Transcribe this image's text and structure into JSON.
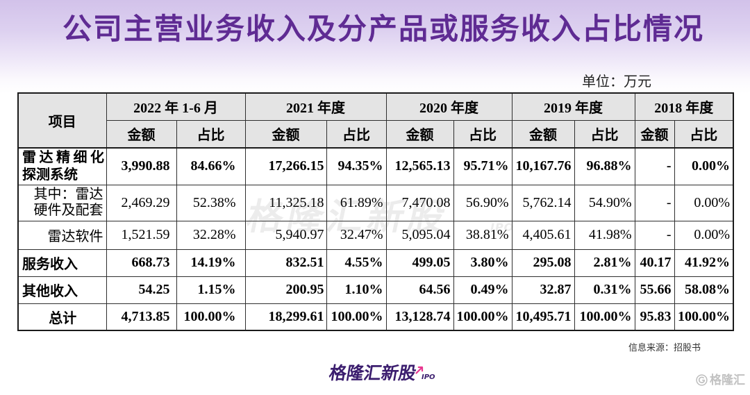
{
  "chart_data": {
    "type": "table",
    "title": "公司主营业务收入及分产品或服务收入占比情况",
    "unit": "单位：万元",
    "item_header": "项目",
    "periods": [
      {
        "label": "2022 年 1-6 月",
        "columns": [
          "金额",
          "占比"
        ]
      },
      {
        "label": "2021 年度",
        "columns": [
          "金额",
          "占比"
        ]
      },
      {
        "label": "2020 年度",
        "columns": [
          "金额",
          "占比"
        ]
      },
      {
        "label": "2019 年度",
        "columns": [
          "金额",
          "占比"
        ]
      },
      {
        "label": "2018 年度",
        "columns": [
          "金额",
          "占比"
        ]
      }
    ],
    "rows": [
      {
        "label_lines": [
          "雷达精细化",
          "探测系统"
        ],
        "values": [
          "3,990.88",
          "84.66%",
          "17,266.15",
          "94.35%",
          "12,565.13",
          "95.71%",
          "10,167.76",
          "96.88%",
          "-",
          "0.00%"
        ]
      },
      {
        "label_lines": [
          "其中：雷达",
          "硬件及配套"
        ],
        "values": [
          "2,469.29",
          "52.38%",
          "11,325.18",
          "61.89%",
          "7,470.08",
          "56.90%",
          "5,762.14",
          "54.90%",
          "-",
          "0.00%"
        ]
      },
      {
        "label_lines": [
          "雷达软件"
        ],
        "values": [
          "1,521.59",
          "32.28%",
          "5,940.97",
          "32.47%",
          "5,095.04",
          "38.81%",
          "4,405.61",
          "41.98%",
          "-",
          "0.00%"
        ]
      },
      {
        "label_lines": [
          "服务收入"
        ],
        "values": [
          "668.73",
          "14.19%",
          "832.51",
          "4.55%",
          "499.05",
          "3.80%",
          "295.08",
          "2.81%",
          "40.17",
          "41.92%"
        ]
      },
      {
        "label_lines": [
          "其他收入"
        ],
        "values": [
          "54.25",
          "1.15%",
          "200.95",
          "1.10%",
          "64.56",
          "0.49%",
          "32.87",
          "0.31%",
          "55.66",
          "58.08%"
        ]
      },
      {
        "label_lines": [
          "总计"
        ],
        "values": [
          "4,713.85",
          "100.00%",
          "18,299.61",
          "100.00%",
          "13,128.74",
          "100.00%",
          "10,495.71",
          "100.00%",
          "95.83",
          "100.00%"
        ]
      }
    ],
    "source": "信息来源：招股书"
  },
  "watermark": {
    "text": "格隆汇新股",
    "tag": "IPO"
  },
  "footer_logo": {
    "text": "格隆汇新股",
    "tag": "IPO",
    "icon": "arrow-up-right-icon"
  },
  "corner_logo": {
    "text": "格隆汇",
    "icon": "g-circle-icon"
  },
  "colors": {
    "title": "#5f2b93",
    "header_fill": "#e4e4e4",
    "logo": "#3b1d6e",
    "accent": "#e8368f",
    "background_top": "#d2c2ea"
  }
}
